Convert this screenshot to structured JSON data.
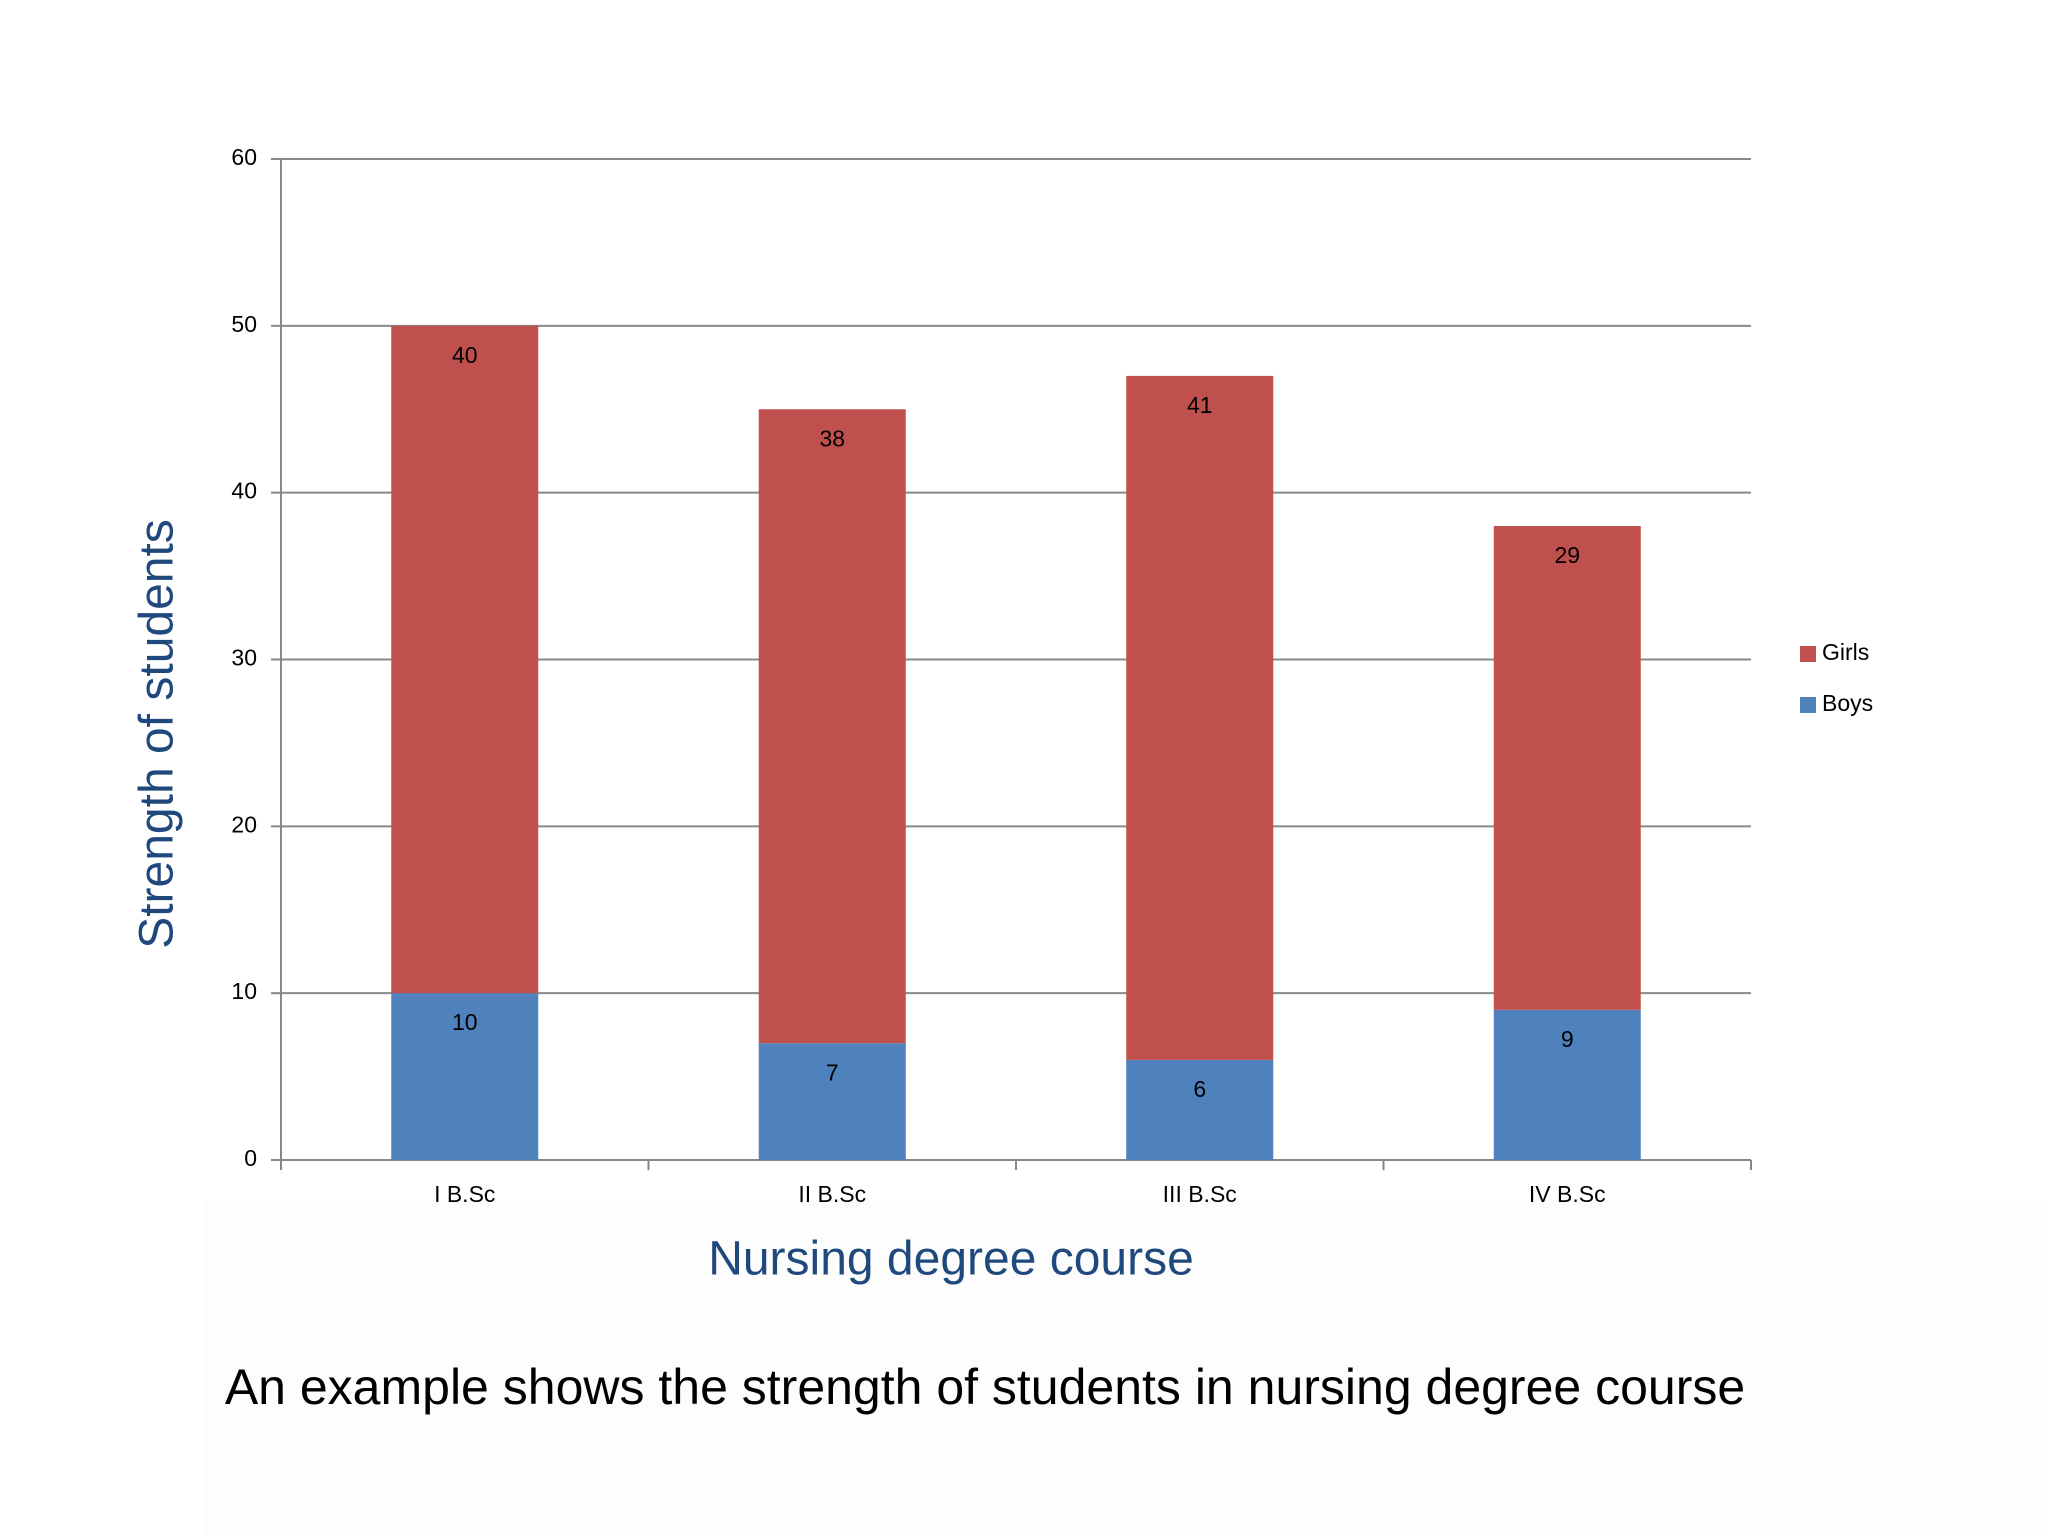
{
  "chart_data": {
    "type": "stacked-bar",
    "caption": "An example shows the strength of students in nursing degree course",
    "x_label": "Nursing degree course",
    "y_label": "Strength of students",
    "categories": [
      "I B.Sc",
      "II B.Sc",
      "III B.Sc",
      "IV B.Sc"
    ],
    "series": [
      {
        "name": "Boys",
        "color": "#4f81bd",
        "values": [
          10,
          7,
          6,
          9
        ]
      },
      {
        "name": "Girls",
        "color": "#c0504d",
        "values": [
          40,
          38,
          41,
          29
        ]
      }
    ],
    "ylim": [
      0,
      60
    ],
    "yticks": [
      0,
      10,
      20,
      30,
      40,
      50,
      60
    ],
    "grid": true,
    "legend": "right"
  }
}
